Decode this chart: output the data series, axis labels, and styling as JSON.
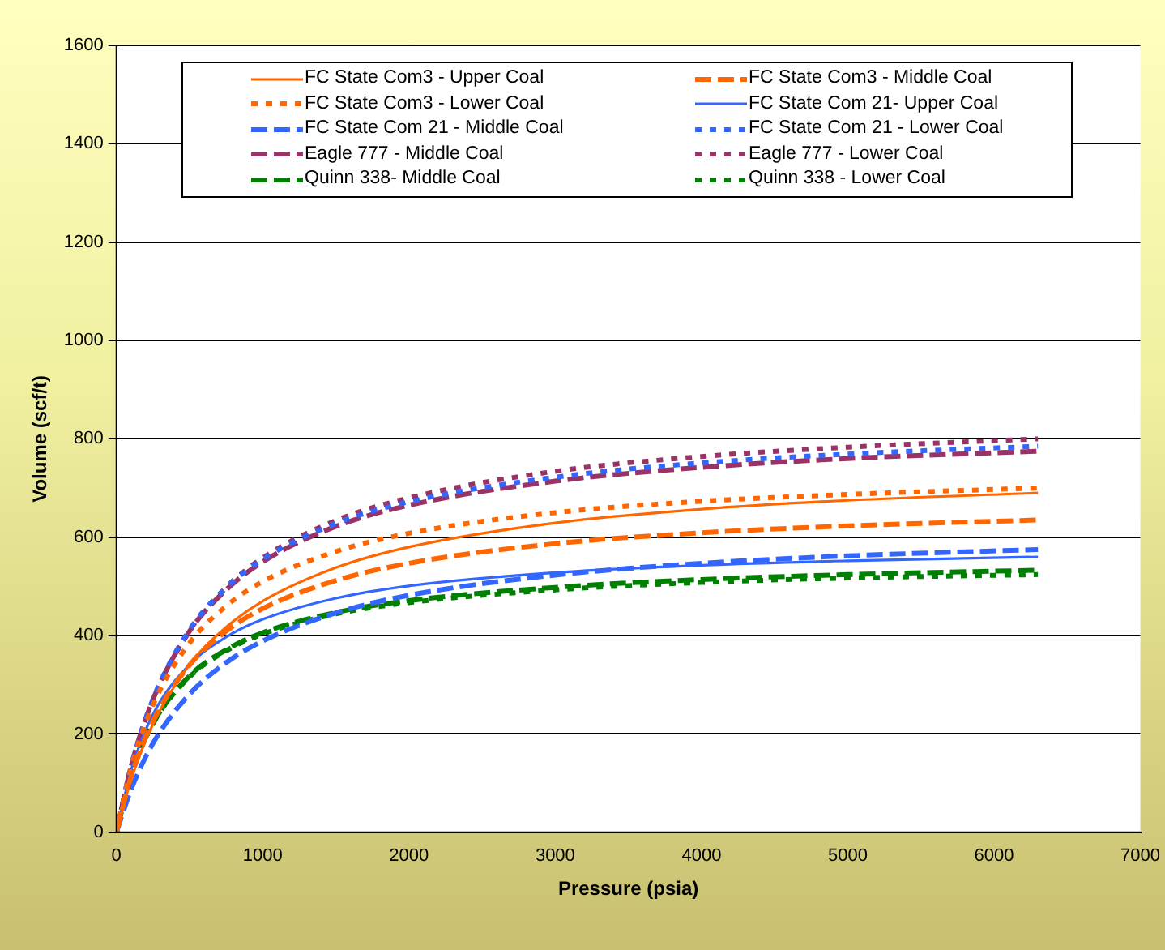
{
  "chart_data": {
    "type": "line",
    "xlabel": "Pressure (psia)",
    "ylabel": "Volume (scf/t)",
    "x": [
      0,
      100,
      250,
      500,
      750,
      1000,
      1500,
      2000,
      3000,
      4000,
      5000,
      6300
    ],
    "xlim": [
      0,
      7000
    ],
    "xticks": [
      0,
      1000,
      2000,
      3000,
      4000,
      5000,
      6000,
      7000
    ],
    "ylim": [
      0,
      1600
    ],
    "yticks": [
      0,
      200,
      400,
      600,
      800,
      1000,
      1200,
      1400,
      1600
    ],
    "grid": "y",
    "legend": "top",
    "marker": "none",
    "series": [
      {
        "name": "FC State Com3 - Upper Coal",
        "color": "#ff6600",
        "line_style": "solid",
        "values": [
          0,
          107,
          220,
          341,
          417,
          470,
          538,
          580,
          629,
          657,
          675,
          690
        ]
      },
      {
        "name": "FC State Com3 - Middle Coal",
        "color": "#ff6600",
        "line_style": "dashed",
        "values": [
          0,
          113,
          226,
          340,
          409,
          455,
          512,
          547,
          587,
          609,
          623,
          635
        ]
      },
      {
        "name": "FC State Com3 - Lower Coal",
        "color": "#ff6600",
        "line_style": "dotted",
        "values": [
          0,
          131,
          259,
          385,
          460,
          510,
          571,
          608,
          650,
          673,
          687,
          700
        ]
      },
      {
        "name": "FC State Com 21- Upper Coal",
        "color": "#3366ff",
        "line_style": "solid",
        "values": [
          0,
          126,
          240,
          341,
          397,
          433,
          476,
          501,
          528,
          543,
          552,
          560
        ]
      },
      {
        "name": "FC State Com 21 - Middle Coal",
        "color": "#3366ff",
        "line_style": "dashed",
        "values": [
          0,
          87,
          181,
          281,
          345,
          389,
          446,
          482,
          523,
          547,
          562,
          575
        ]
      },
      {
        "name": "FC State Com 21 - Lower Coal",
        "color": "#3366ff",
        "line_style": "dotted",
        "values": [
          0,
          134,
          271,
          412,
          497,
          555,
          628,
          672,
          722,
          751,
          769,
          785
        ]
      },
      {
        "name": "Eagle 777 - Middle Coal",
        "color": "#993366",
        "line_style": "dashed",
        "values": [
          0,
          134,
          270,
          409,
          493,
          550,
          622,
          665,
          714,
          742,
          760,
          775
        ]
      },
      {
        "name": "Eagle 777 - Lower Coal",
        "color": "#993366",
        "line_style": "dotted",
        "values": [
          0,
          132,
          268,
          410,
          498,
          558,
          634,
          680,
          734,
          764,
          783,
          800
        ]
      },
      {
        "name": "Quinn 338- Middle Coal",
        "color": "#008000",
        "line_style": "dashed",
        "values": [
          0,
          116,
          221,
          318,
          371,
          406,
          447,
          471,
          498,
          514,
          524,
          533
        ]
      },
      {
        "name": "Quinn 338 - Lower Coal",
        "color": "#008000",
        "line_style": "dotted",
        "values": [
          0,
          116,
          221,
          316,
          369,
          403,
          444,
          467,
          493,
          508,
          517,
          524
        ]
      }
    ]
  }
}
